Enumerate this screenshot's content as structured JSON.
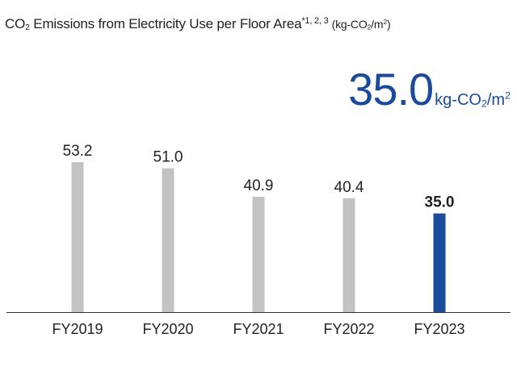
{
  "header": {
    "title_main": "CO",
    "title_sub": "2",
    "title_rest": " Emissions from Electricity Use per Floor Area",
    "footnote": "*1, 2, 3",
    "unit_prefix": "(kg-CO",
    "unit_sub": "2",
    "unit_mid": "/m",
    "unit_sup": "2",
    "unit_suffix": ")"
  },
  "headline": {
    "value": "35.0",
    "unit_prefix": "kg-CO",
    "unit_sub": "2",
    "unit_mid": "/m",
    "unit_sup": "2"
  },
  "colors": {
    "bar": "#c3c3c5",
    "highlight": "#1a4a9c",
    "axis": "#333333"
  },
  "chart_data": {
    "type": "bar",
    "categories": [
      "FY2019",
      "FY2020",
      "FY2021",
      "FY2022",
      "FY2023"
    ],
    "values": [
      53.2,
      51.0,
      40.9,
      40.4,
      35.0
    ],
    "value_labels": [
      "53.2",
      "51.0",
      "40.9",
      "40.4",
      "35.0"
    ],
    "highlight_index": 4,
    "ylim": [
      0,
      53.2
    ],
    "grid": false
  }
}
